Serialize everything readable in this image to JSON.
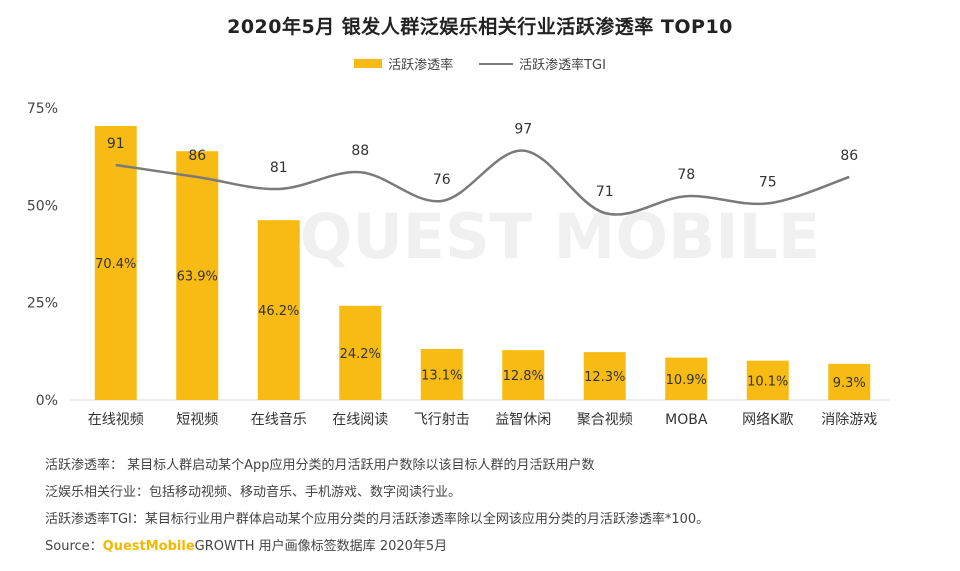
{
  "title": "2020年5月 银发人群泛娱乐相关行业活跃渗透率 TOP10",
  "watermark": "QUEST MOBILE",
  "colors": {
    "bar": "#f8bb14",
    "line": "#7a7a7a",
    "brand": "#f5b800"
  },
  "notes": [
    "活跃渗透率：  某目标人群启动某个App应用分类的月活跃用户数除以该目标人群的月活跃用户数",
    "泛娱乐相关行业：包括移动视频、移动音乐、手机游戏、数字阅读行业。",
    "活跃渗透率TGI：某目标行业用户群体启动某个应用分类的月活跃渗透率除以全网该应用分类的月活跃渗透率*100。"
  ],
  "source": {
    "label": "Source：",
    "brand": "QuestMobile",
    "text": "GROWTH 用户画像标签数据库 2020年5月"
  },
  "chart_data": {
    "type": "bar",
    "categories": [
      "在线视频",
      "短视频",
      "在线音乐",
      "在线阅读",
      "飞行射击",
      "益智休闲",
      "聚合视频",
      "MOBA",
      "网络K歌",
      "消除游戏"
    ],
    "series": [
      {
        "name": "活跃渗透率",
        "type": "bar",
        "axis": "left",
        "values": [
          70.4,
          63.9,
          46.2,
          24.2,
          13.1,
          12.8,
          12.3,
          10.9,
          10.1,
          9.3
        ],
        "labels": [
          "70.4%",
          "63.9%",
          "46.2%",
          "24.2%",
          "13.1%",
          "12.8%",
          "12.3%",
          "10.9%",
          "10.1%",
          "9.3%"
        ]
      },
      {
        "name": "活跃渗透率TGI",
        "type": "line",
        "axis": "secondary",
        "smooth": true,
        "values": [
          91,
          86,
          81,
          88,
          76,
          97,
          71,
          78,
          75,
          86
        ]
      }
    ],
    "y_ticks": [
      "0%",
      "25%",
      "50%",
      "75%"
    ],
    "ylim": [
      0,
      75
    ],
    "grid": false,
    "legend_position": "top-center"
  }
}
